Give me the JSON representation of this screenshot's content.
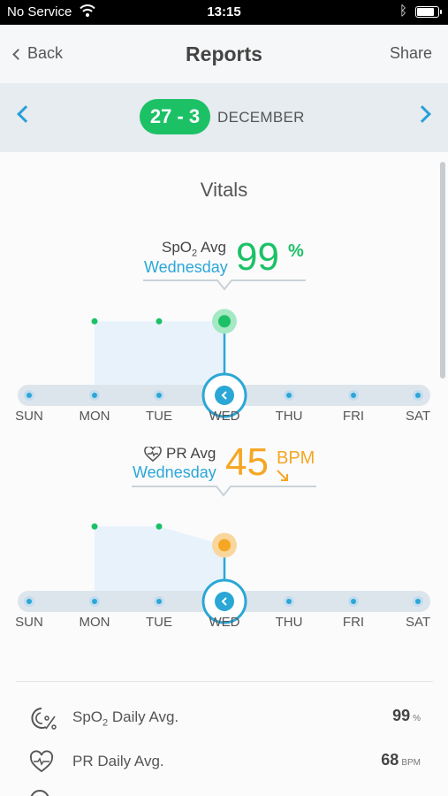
{
  "status_bar": {
    "carrier": "No Service",
    "time": "13:15",
    "battery_level": 0.85
  },
  "nav": {
    "back_label": "Back",
    "title": "Reports",
    "share_label": "Share"
  },
  "date_bar": {
    "range": "27 - 3",
    "month": "DECEMBER"
  },
  "section_title": "Vitals",
  "spo2": {
    "label_main": "SpO",
    "label_sub": "2",
    "label_suffix": " Avg",
    "selected_day": "Wednesday",
    "value": "99",
    "unit": "%",
    "color": "#1cc166"
  },
  "pr": {
    "label": "PR Avg",
    "selected_day": "Wednesday",
    "value": "45",
    "unit": "BPM",
    "color": "#f5a623"
  },
  "days": [
    "SUN",
    "MON",
    "TUE",
    "WED",
    "THU",
    "FRI",
    "SAT"
  ],
  "chart_data": [
    {
      "type": "area",
      "title": "",
      "categories": [
        "SUN",
        "MON",
        "TUE",
        "WED",
        "THU",
        "FRI",
        "SAT"
      ],
      "series": [
        {
          "name": "SpO2 Avg",
          "values": [
            null,
            99,
            99,
            99,
            null,
            null,
            null
          ]
        }
      ],
      "selected_index": 3,
      "ylim": [
        90,
        100
      ]
    },
    {
      "type": "area",
      "title": "",
      "categories": [
        "SUN",
        "MON",
        "TUE",
        "WED",
        "THU",
        "FRI",
        "SAT"
      ],
      "series": [
        {
          "name": "PR Avg",
          "values": [
            null,
            60,
            60,
            45,
            null,
            null,
            null
          ]
        }
      ],
      "selected_index": 3,
      "ylim": [
        0,
        80
      ]
    }
  ],
  "stats": [
    {
      "name_main": "SpO",
      "name_sub": "2",
      "name_suffix": " Daily Avg.",
      "value": "99",
      "unit": "%",
      "icon": "spo2-icon"
    },
    {
      "name": "PR Daily Avg.",
      "value": "68",
      "unit": "BPM",
      "icon": "heart-pulse-icon"
    }
  ]
}
